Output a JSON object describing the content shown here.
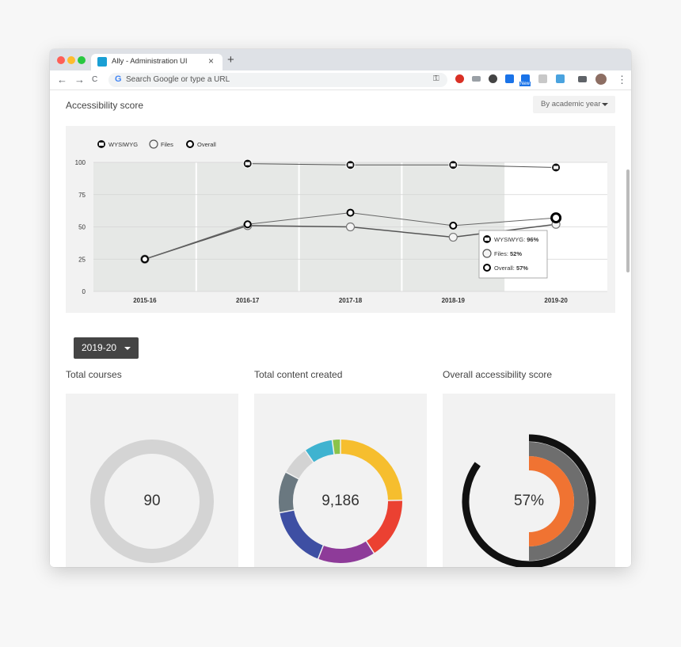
{
  "browser": {
    "tab_title": "Ally - Administration UI",
    "tab_close": "×",
    "new_tab": "+",
    "omnibox_placeholder": "Search Google or type a URL",
    "google_letter": "G",
    "key_glyph": "⚿",
    "back_glyph": "←",
    "forward_glyph": "→",
    "reload_glyph": "C",
    "menu_glyph": "⋮",
    "ext_badge": "New"
  },
  "page": {
    "section_title": "Accessibility score",
    "view_select": "By academic year",
    "year_dropdown": "2019-20",
    "cards": [
      {
        "title": "Total courses",
        "value": "90"
      },
      {
        "title": "Total content created",
        "value": "9,186"
      },
      {
        "title": "Overall accessibility score",
        "value": "57%"
      }
    ]
  },
  "chart_data": {
    "type": "line",
    "x": [
      "2015-16",
      "2016-17",
      "2017-18",
      "2018-19",
      "2019-20"
    ],
    "ylim": [
      0,
      100
    ],
    "yticks": [
      0,
      25,
      50,
      75,
      100
    ],
    "legend": [
      "WYSIWYG",
      "Files",
      "Overall"
    ],
    "legend_position": "top-left",
    "series": [
      {
        "name": "WYSIWYG",
        "values": [
          null,
          99,
          98,
          98,
          96
        ]
      },
      {
        "name": "Files",
        "values": [
          25,
          51,
          50,
          42,
          52
        ]
      },
      {
        "name": "Overall",
        "values": [
          25,
          52,
          61,
          51,
          57
        ]
      }
    ],
    "tooltip": {
      "rows": [
        {
          "label": "WYSIWYG:",
          "value": "96%"
        },
        {
          "label": "Files:",
          "value": "52%"
        },
        {
          "label": "Overall:",
          "value": "57%"
        }
      ]
    }
  },
  "donuts": {
    "total_content_segments": [
      {
        "value": 23,
        "color": "#f6be2e"
      },
      {
        "value": 15,
        "color": "#eb4132"
      },
      {
        "value": 14,
        "color": "#8e3b99"
      },
      {
        "value": 15,
        "color": "#3e4fa3"
      },
      {
        "value": 10,
        "color": "#6a7880"
      },
      {
        "value": 7,
        "color": "#d3d3d3"
      },
      {
        "value": 7,
        "color": "#3fb3d0"
      },
      {
        "value": 2,
        "color": "#8bc34a"
      }
    ],
    "overall_score_rings": [
      {
        "name": "outer",
        "percent": 85,
        "color": "#111111"
      },
      {
        "name": "middle",
        "percent": 50,
        "color": "#6e6e6e"
      },
      {
        "name": "inner",
        "percent": 50,
        "color": "#f07332"
      }
    ],
    "courses_ring_color": "#d4d4d4"
  }
}
